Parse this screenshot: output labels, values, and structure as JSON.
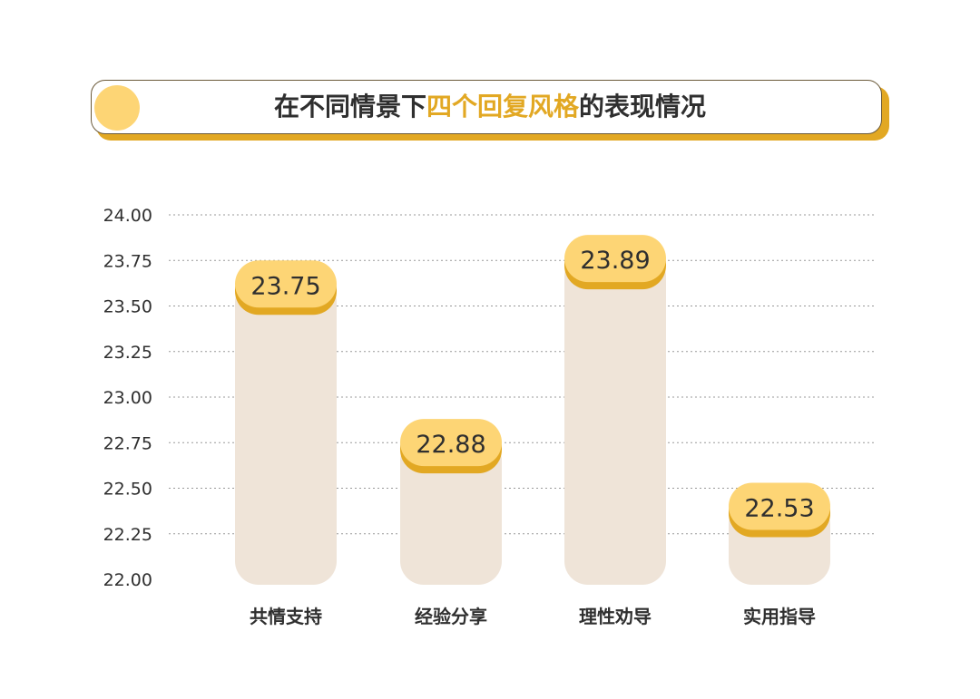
{
  "title": {
    "pre": "在不同情景下",
    "highlight": "四个回复风格",
    "post": "的表现情况"
  },
  "colors": {
    "bar": "#efe4d8",
    "pill": "#fdd575",
    "pill_shadow": "#e2a823",
    "grid": "#999999",
    "text": "#2f2f2f"
  },
  "chart_data": {
    "type": "bar",
    "title": "在不同情景下四个回复风格的表现情况",
    "categories": [
      "共情支持",
      "经验分享",
      "理性劝导",
      "实用指导"
    ],
    "values": [
      23.75,
      22.88,
      23.89,
      22.53
    ],
    "value_labels": [
      "23.75",
      "22.88",
      "23.89",
      "22.53"
    ],
    "ylim": [
      22.0,
      24.0
    ],
    "yticks": [
      "22.00",
      "22.25",
      "22.50",
      "22.75",
      "23.00",
      "23.25",
      "23.50",
      "23.75",
      "24.00"
    ],
    "grid": true,
    "xlabel": "",
    "ylabel": ""
  }
}
